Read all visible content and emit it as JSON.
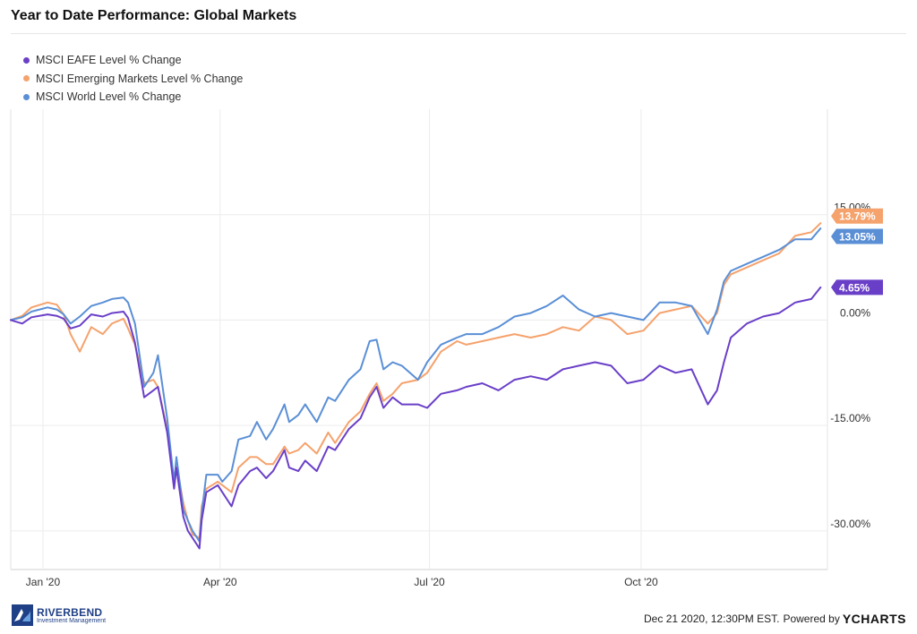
{
  "title": "Year to Date Performance: Global Markets",
  "legend": [
    {
      "label": "MSCI EAFE Level % Change",
      "color": "#6a3fc8"
    },
    {
      "label": "MSCI Emerging Markets Level % Change",
      "color": "#f5a26c"
    },
    {
      "label": "MSCI World Level % Change",
      "color": "#5a8fd6"
    }
  ],
  "footer": {
    "timestamp": "Dec 21 2020, 12:30PM EST.",
    "powered_by": "Powered by",
    "brand": "YCHARTS"
  },
  "logo": {
    "name": "RIVERBEND",
    "sub": "Investment Management"
  },
  "chart_data": {
    "type": "line",
    "title": "Year to Date Performance: Global Markets",
    "xlabel": "",
    "ylabel": "",
    "x_range": [
      "2020-01-01",
      "2020-12-21"
    ],
    "ylim": [
      -35.5,
      30
    ],
    "y_ticks": [
      {
        "value": 15,
        "label": "15.00%"
      },
      {
        "value": 0,
        "label": "0.00%"
      },
      {
        "value": -15,
        "label": "-15.00%"
      },
      {
        "value": -30,
        "label": "-30.00%"
      }
    ],
    "x_ticks": [
      {
        "date": "2020-01-15",
        "label": "Jan '20"
      },
      {
        "date": "2020-04-01",
        "label": "Apr '20"
      },
      {
        "date": "2020-07-01",
        "label": "Jul '20"
      },
      {
        "date": "2020-10-01",
        "label": "Oct '20"
      }
    ],
    "grid": true,
    "legend_position": "top-left",
    "series": [
      {
        "name": "MSCI EAFE Level % Change",
        "color": "#6a3fc8",
        "end_label": "4.65%",
        "points": [
          [
            "2020-01-01",
            0
          ],
          [
            "2020-01-06",
            -0.5
          ],
          [
            "2020-01-10",
            0.4
          ],
          [
            "2020-01-17",
            0.8
          ],
          [
            "2020-01-21",
            0.6
          ],
          [
            "2020-01-24",
            0.2
          ],
          [
            "2020-01-27",
            -1.2
          ],
          [
            "2020-01-31",
            -0.8
          ],
          [
            "2020-02-05",
            0.8
          ],
          [
            "2020-02-10",
            0.5
          ],
          [
            "2020-02-14",
            1.0
          ],
          [
            "2020-02-19",
            1.2
          ],
          [
            "2020-02-21",
            0.3
          ],
          [
            "2020-02-24",
            -3.2
          ],
          [
            "2020-02-28",
            -11.0
          ],
          [
            "2020-03-03",
            -10.0
          ],
          [
            "2020-03-05",
            -9.5
          ],
          [
            "2020-03-09",
            -16.0
          ],
          [
            "2020-03-12",
            -24.0
          ],
          [
            "2020-03-13",
            -21.0
          ],
          [
            "2020-03-16",
            -28.0
          ],
          [
            "2020-03-18",
            -30.0
          ],
          [
            "2020-03-20",
            -31.0
          ],
          [
            "2020-03-23",
            -32.5
          ],
          [
            "2020-03-24",
            -28.5
          ],
          [
            "2020-03-26",
            -24.5
          ],
          [
            "2020-03-31",
            -23.5
          ],
          [
            "2020-04-02",
            -24.5
          ],
          [
            "2020-04-06",
            -26.5
          ],
          [
            "2020-04-09",
            -23.5
          ],
          [
            "2020-04-14",
            -21.5
          ],
          [
            "2020-04-17",
            -21.0
          ],
          [
            "2020-04-21",
            -22.5
          ],
          [
            "2020-04-24",
            -21.5
          ],
          [
            "2020-04-29",
            -18.5
          ],
          [
            "2020-05-01",
            -21.0
          ],
          [
            "2020-05-05",
            -21.5
          ],
          [
            "2020-05-08",
            -20.0
          ],
          [
            "2020-05-13",
            -21.5
          ],
          [
            "2020-05-18",
            -18.0
          ],
          [
            "2020-05-21",
            -18.5
          ],
          [
            "2020-05-27",
            -15.5
          ],
          [
            "2020-06-01",
            -14.0
          ],
          [
            "2020-06-05",
            -11.0
          ],
          [
            "2020-06-08",
            -9.5
          ],
          [
            "2020-06-11",
            -12.5
          ],
          [
            "2020-06-15",
            -11.0
          ],
          [
            "2020-06-19",
            -12.0
          ],
          [
            "2020-06-26",
            -12.0
          ],
          [
            "2020-06-30",
            -12.5
          ],
          [
            "2020-07-06",
            -10.5
          ],
          [
            "2020-07-13",
            -10.0
          ],
          [
            "2020-07-17",
            -9.5
          ],
          [
            "2020-07-24",
            -9.0
          ],
          [
            "2020-07-31",
            -10.0
          ],
          [
            "2020-08-07",
            -8.5
          ],
          [
            "2020-08-14",
            -8.0
          ],
          [
            "2020-08-21",
            -8.5
          ],
          [
            "2020-08-28",
            -7.0
          ],
          [
            "2020-09-04",
            -6.5
          ],
          [
            "2020-09-11",
            -6.0
          ],
          [
            "2020-09-18",
            -6.5
          ],
          [
            "2020-09-25",
            -9.0
          ],
          [
            "2020-10-02",
            -8.5
          ],
          [
            "2020-10-09",
            -6.5
          ],
          [
            "2020-10-16",
            -7.5
          ],
          [
            "2020-10-23",
            -7.0
          ],
          [
            "2020-10-30",
            -12.0
          ],
          [
            "2020-11-03",
            -10.0
          ],
          [
            "2020-11-06",
            -6.0
          ],
          [
            "2020-11-09",
            -2.5
          ],
          [
            "2020-11-16",
            -0.5
          ],
          [
            "2020-11-23",
            0.5
          ],
          [
            "2020-11-30",
            1.0
          ],
          [
            "2020-12-07",
            2.5
          ],
          [
            "2020-12-14",
            3.0
          ],
          [
            "2020-12-18",
            4.65
          ]
        ]
      },
      {
        "name": "MSCI Emerging Markets Level % Change",
        "color": "#f5a26c",
        "end_label": "13.79%",
        "points": [
          [
            "2020-01-01",
            0
          ],
          [
            "2020-01-06",
            0.6
          ],
          [
            "2020-01-10",
            1.8
          ],
          [
            "2020-01-17",
            2.5
          ],
          [
            "2020-01-21",
            2.2
          ],
          [
            "2020-01-24",
            0.8
          ],
          [
            "2020-01-27",
            -2.0
          ],
          [
            "2020-01-31",
            -4.5
          ],
          [
            "2020-02-05",
            -1.0
          ],
          [
            "2020-02-10",
            -2.0
          ],
          [
            "2020-02-14",
            -0.5
          ],
          [
            "2020-02-19",
            0.2
          ],
          [
            "2020-02-21",
            -1.2
          ],
          [
            "2020-02-24",
            -3.5
          ],
          [
            "2020-02-28",
            -9.0
          ],
          [
            "2020-03-03",
            -8.5
          ],
          [
            "2020-03-05",
            -9.5
          ],
          [
            "2020-03-09",
            -15.5
          ],
          [
            "2020-03-12",
            -23.0
          ],
          [
            "2020-03-13",
            -20.5
          ],
          [
            "2020-03-16",
            -26.0
          ],
          [
            "2020-03-18",
            -28.5
          ],
          [
            "2020-03-20",
            -30.5
          ],
          [
            "2020-03-23",
            -31.0
          ],
          [
            "2020-03-24",
            -26.5
          ],
          [
            "2020-03-26",
            -24.0
          ],
          [
            "2020-03-31",
            -23.0
          ],
          [
            "2020-04-02",
            -23.5
          ],
          [
            "2020-04-06",
            -24.5
          ],
          [
            "2020-04-09",
            -21.0
          ],
          [
            "2020-04-14",
            -19.5
          ],
          [
            "2020-04-17",
            -19.5
          ],
          [
            "2020-04-21",
            -20.5
          ],
          [
            "2020-04-24",
            -20.5
          ],
          [
            "2020-04-29",
            -18.0
          ],
          [
            "2020-05-01",
            -19.0
          ],
          [
            "2020-05-05",
            -18.5
          ],
          [
            "2020-05-08",
            -17.5
          ],
          [
            "2020-05-13",
            -19.0
          ],
          [
            "2020-05-18",
            -16.0
          ],
          [
            "2020-05-21",
            -17.5
          ],
          [
            "2020-05-27",
            -14.5
          ],
          [
            "2020-06-01",
            -13.0
          ],
          [
            "2020-06-05",
            -10.5
          ],
          [
            "2020-06-08",
            -9.0
          ],
          [
            "2020-06-11",
            -11.5
          ],
          [
            "2020-06-15",
            -10.5
          ],
          [
            "2020-06-19",
            -9.0
          ],
          [
            "2020-06-26",
            -8.5
          ],
          [
            "2020-06-30",
            -7.5
          ],
          [
            "2020-07-06",
            -4.5
          ],
          [
            "2020-07-13",
            -3.0
          ],
          [
            "2020-07-17",
            -3.5
          ],
          [
            "2020-07-24",
            -3.0
          ],
          [
            "2020-07-31",
            -2.5
          ],
          [
            "2020-08-07",
            -2.0
          ],
          [
            "2020-08-14",
            -2.5
          ],
          [
            "2020-08-21",
            -2.0
          ],
          [
            "2020-08-28",
            -1.0
          ],
          [
            "2020-09-04",
            -1.5
          ],
          [
            "2020-09-11",
            0.5
          ],
          [
            "2020-09-18",
            0.0
          ],
          [
            "2020-09-25",
            -2.0
          ],
          [
            "2020-10-02",
            -1.5
          ],
          [
            "2020-10-09",
            1.0
          ],
          [
            "2020-10-16",
            1.5
          ],
          [
            "2020-10-23",
            2.0
          ],
          [
            "2020-10-30",
            -0.5
          ],
          [
            "2020-11-03",
            1.0
          ],
          [
            "2020-11-06",
            5.0
          ],
          [
            "2020-11-09",
            6.5
          ],
          [
            "2020-11-16",
            7.5
          ],
          [
            "2020-11-23",
            8.5
          ],
          [
            "2020-11-30",
            9.5
          ],
          [
            "2020-12-07",
            12.0
          ],
          [
            "2020-12-14",
            12.5
          ],
          [
            "2020-12-18",
            13.79
          ]
        ]
      },
      {
        "name": "MSCI World Level % Change",
        "color": "#5a8fd6",
        "end_label": "13.05%",
        "points": [
          [
            "2020-01-01",
            0
          ],
          [
            "2020-01-06",
            0.4
          ],
          [
            "2020-01-10",
            1.2
          ],
          [
            "2020-01-17",
            1.8
          ],
          [
            "2020-01-21",
            1.5
          ],
          [
            "2020-01-24",
            0.8
          ],
          [
            "2020-01-27",
            -0.5
          ],
          [
            "2020-01-31",
            0.5
          ],
          [
            "2020-02-05",
            2.0
          ],
          [
            "2020-02-10",
            2.5
          ],
          [
            "2020-02-14",
            3.0
          ],
          [
            "2020-02-19",
            3.2
          ],
          [
            "2020-02-21",
            2.5
          ],
          [
            "2020-02-24",
            -0.5
          ],
          [
            "2020-02-28",
            -9.5
          ],
          [
            "2020-03-03",
            -7.5
          ],
          [
            "2020-03-05",
            -5.0
          ],
          [
            "2020-03-09",
            -14.0
          ],
          [
            "2020-03-12",
            -23.0
          ],
          [
            "2020-03-13",
            -19.5
          ],
          [
            "2020-03-16",
            -27.0
          ],
          [
            "2020-03-18",
            -28.5
          ],
          [
            "2020-03-20",
            -30.0
          ],
          [
            "2020-03-23",
            -31.5
          ],
          [
            "2020-03-24",
            -27.5
          ],
          [
            "2020-03-26",
            -22.0
          ],
          [
            "2020-03-31",
            -22.0
          ],
          [
            "2020-04-02",
            -23.0
          ],
          [
            "2020-04-06",
            -21.5
          ],
          [
            "2020-04-09",
            -17.0
          ],
          [
            "2020-04-14",
            -16.5
          ],
          [
            "2020-04-17",
            -14.5
          ],
          [
            "2020-04-21",
            -17.0
          ],
          [
            "2020-04-24",
            -15.5
          ],
          [
            "2020-04-29",
            -12.0
          ],
          [
            "2020-05-01",
            -14.5
          ],
          [
            "2020-05-05",
            -13.5
          ],
          [
            "2020-05-08",
            -12.0
          ],
          [
            "2020-05-13",
            -14.5
          ],
          [
            "2020-05-18",
            -11.0
          ],
          [
            "2020-05-21",
            -11.5
          ],
          [
            "2020-05-27",
            -8.5
          ],
          [
            "2020-06-01",
            -7.0
          ],
          [
            "2020-06-05",
            -3.0
          ],
          [
            "2020-06-08",
            -2.8
          ],
          [
            "2020-06-11",
            -7.0
          ],
          [
            "2020-06-15",
            -6.0
          ],
          [
            "2020-06-19",
            -6.5
          ],
          [
            "2020-06-26",
            -8.5
          ],
          [
            "2020-06-30",
            -6.0
          ],
          [
            "2020-07-06",
            -3.5
          ],
          [
            "2020-07-13",
            -2.5
          ],
          [
            "2020-07-17",
            -2.0
          ],
          [
            "2020-07-24",
            -2.0
          ],
          [
            "2020-07-31",
            -1.0
          ],
          [
            "2020-08-07",
            0.5
          ],
          [
            "2020-08-14",
            1.0
          ],
          [
            "2020-08-21",
            2.0
          ],
          [
            "2020-08-28",
            3.5
          ],
          [
            "2020-09-04",
            1.5
          ],
          [
            "2020-09-11",
            0.5
          ],
          [
            "2020-09-18",
            1.0
          ],
          [
            "2020-09-25",
            0.5
          ],
          [
            "2020-10-02",
            0.0
          ],
          [
            "2020-10-09",
            2.5
          ],
          [
            "2020-10-16",
            2.5
          ],
          [
            "2020-10-23",
            2.0
          ],
          [
            "2020-10-30",
            -2.0
          ],
          [
            "2020-11-03",
            1.5
          ],
          [
            "2020-11-06",
            5.5
          ],
          [
            "2020-11-09",
            7.0
          ],
          [
            "2020-11-16",
            8.0
          ],
          [
            "2020-11-23",
            9.0
          ],
          [
            "2020-11-30",
            10.0
          ],
          [
            "2020-12-07",
            11.5
          ],
          [
            "2020-12-14",
            11.5
          ],
          [
            "2020-12-18",
            13.05
          ]
        ]
      }
    ]
  }
}
